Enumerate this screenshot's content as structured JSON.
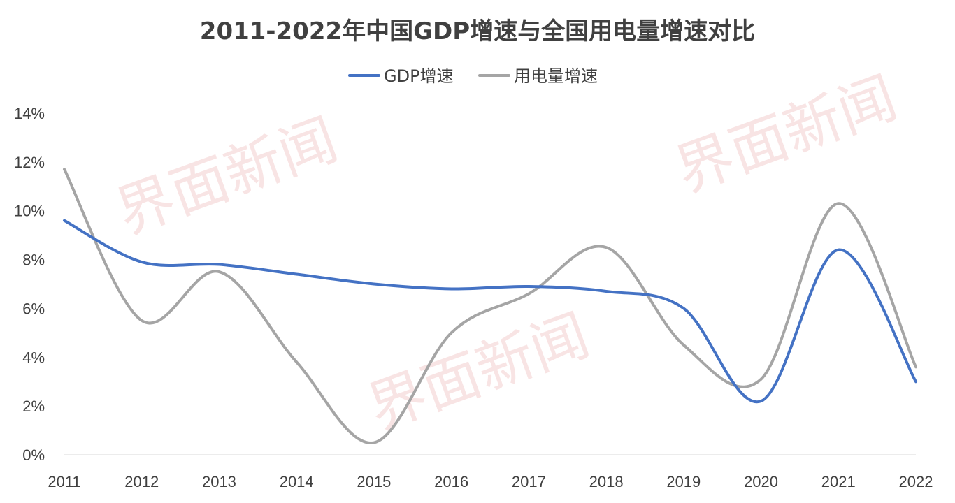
{
  "watermark": "界面新闻",
  "chart_data": {
    "type": "line",
    "title": "2011-2022年中国GDP增速与全国用电量增速对比",
    "categories": [
      "2011",
      "2012",
      "2013",
      "2014",
      "2015",
      "2016",
      "2017",
      "2018",
      "2019",
      "2020",
      "2021",
      "2022"
    ],
    "series": [
      {
        "name": "GDP增速",
        "color": "#4472c4",
        "values": [
          9.6,
          7.9,
          7.8,
          7.4,
          7.0,
          6.8,
          6.9,
          6.7,
          6.0,
          2.2,
          8.4,
          3.0
        ]
      },
      {
        "name": "用电量增速",
        "color": "#a5a5a5",
        "values": [
          11.7,
          5.5,
          7.5,
          3.8,
          0.5,
          5.0,
          6.6,
          8.5,
          4.5,
          3.1,
          10.3,
          3.6
        ]
      }
    ],
    "yticks": [
      "0%",
      "2%",
      "4%",
      "6%",
      "8%",
      "10%",
      "12%",
      "14%"
    ],
    "ylim": [
      0,
      14
    ],
    "legend": "top-center",
    "grid": false,
    "smooth": true
  }
}
